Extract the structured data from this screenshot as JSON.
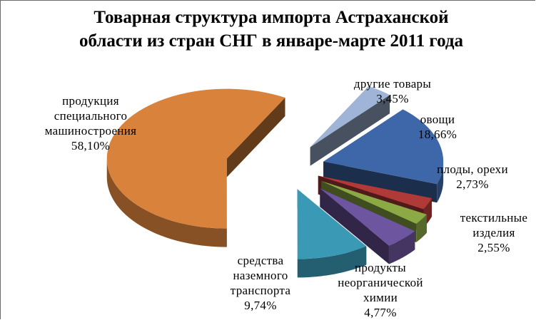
{
  "chart_data": {
    "type": "pie",
    "title_lines": [
      "Товарная структура импорта Астраханской",
      "области из стран СНГ в январе-марте 2011 года"
    ],
    "slices": [
      {
        "label_lines": [
          "продукция",
          "специального",
          "машиностроения"
        ],
        "value": 58.1,
        "value_text": "58,10%",
        "color": "#D9823B"
      },
      {
        "label_lines": [
          "другие товары"
        ],
        "value": 3.45,
        "value_text": "3,45%",
        "color": "#9FB4D6"
      },
      {
        "label_lines": [
          "овощи"
        ],
        "value": 18.66,
        "value_text": "18,66%",
        "color": "#3D67A8"
      },
      {
        "label_lines": [
          "плоды, орехи"
        ],
        "value": 2.73,
        "value_text": "2,73%",
        "color": "#B03A37"
      },
      {
        "label_lines": [
          "текстильные",
          "изделия"
        ],
        "value": 2.55,
        "value_text": "2,55%",
        "color": "#8BAA45"
      },
      {
        "label_lines": [
          "продукты",
          "неорганической",
          "химии"
        ],
        "value": 4.77,
        "value_text": "4,77%",
        "color": "#6E55A0"
      },
      {
        "label_lines": [
          "средства",
          "наземного",
          "транспорта"
        ],
        "value": 9.74,
        "value_text": "9,74%",
        "color": "#3A9AB6"
      }
    ]
  }
}
